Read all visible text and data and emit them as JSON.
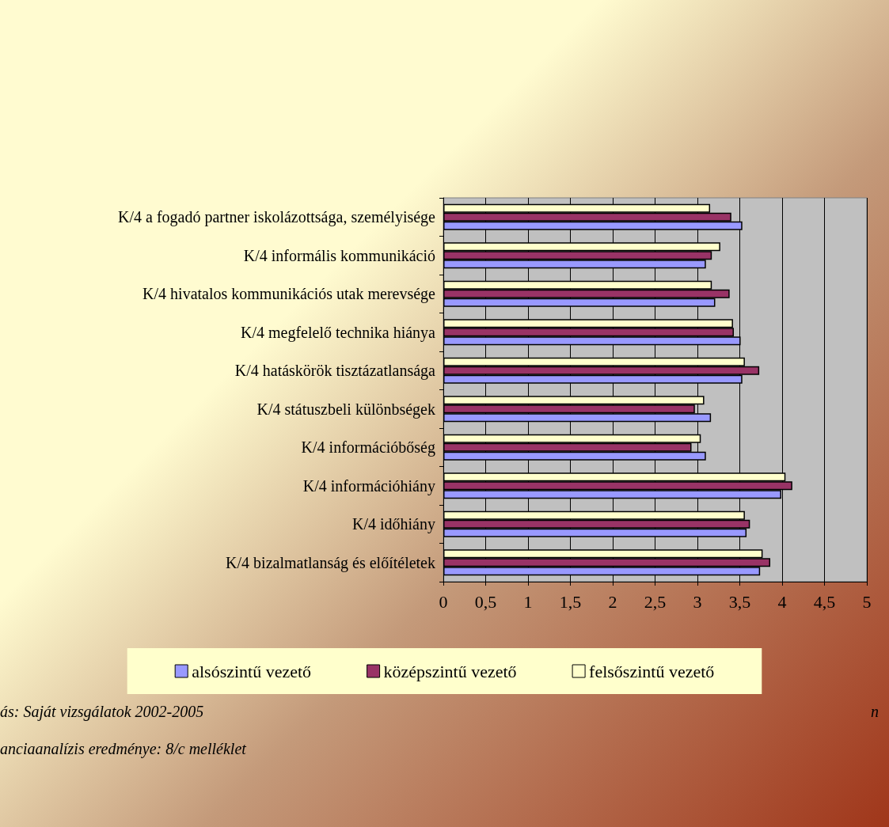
{
  "chart_data": {
    "type": "bar",
    "orientation": "horizontal",
    "categories": [
      "K/4 a fogadó partner iskolázottsága, személyisége",
      "K/4 informális kommunikáció",
      "K/4 hivatalos kommunikációs utak merevsége",
      "K/4 megfelelő technika hiánya",
      "K/4 hatáskörök tisztázatlansága",
      "K/4 státuszbeli különbségek",
      "K/4 információbőség",
      "K/4 információhiány",
      "K/4 időhiány",
      "K/4 bizalmatlanság és előítéletek"
    ],
    "series": [
      {
        "name": "alsószintű vezető",
        "color": "#9999ff",
        "values": [
          3.53,
          3.1,
          3.21,
          3.51,
          3.53,
          3.16,
          3.1,
          3.99,
          3.58,
          3.74
        ]
      },
      {
        "name": "középszintű vezető",
        "color": "#993366",
        "values": [
          3.4,
          3.17,
          3.38,
          3.43,
          3.73,
          2.97,
          2.93,
          4.12,
          3.62,
          3.86
        ]
      },
      {
        "name": "felsőszintű vezető",
        "color": "#ffffcc",
        "values": [
          3.15,
          3.27,
          3.17,
          3.42,
          3.56,
          3.08,
          3.04,
          4.04,
          3.56,
          3.77
        ]
      }
    ],
    "xlim": [
      0,
      5
    ],
    "xticks": [
      0,
      {
        "value": 0.5,
        "label": "0,5"
      },
      1,
      {
        "value": 1.5,
        "label": "1,5"
      },
      2,
      {
        "value": 2.5,
        "label": "2,5"
      },
      3,
      {
        "value": 3.5,
        "label": "3,5"
      },
      4,
      {
        "value": 4.5,
        "label": "4,5"
      },
      5
    ],
    "grid": "x",
    "legend": "bottom",
    "annotations": [
      "ás: Saját vizsgálatok 2002-2005",
      "n",
      "anciaanalízis eredménye: 8/c melléklet"
    ]
  }
}
